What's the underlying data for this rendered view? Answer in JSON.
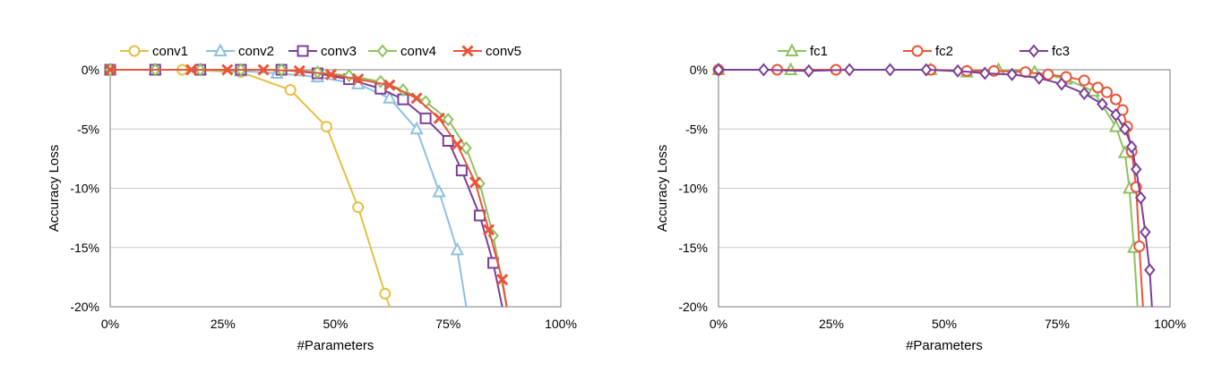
{
  "chart_data": [
    {
      "type": "line",
      "xlabel": "#Parameters",
      "ylabel": "Accuracy Loss",
      "xlim": [
        0,
        100
      ],
      "ylim": [
        -20,
        0
      ],
      "x_ticks": [
        "0%",
        "25%",
        "50%",
        "75%",
        "100%"
      ],
      "y_ticks": [
        "0%",
        "-5%",
        "-10%",
        "-15%",
        "-20%"
      ],
      "grid": "horizontal",
      "legend": "top",
      "series": [
        {
          "name": "conv1",
          "color": "#e5c043",
          "marker": "circle",
          "x": [
            0,
            16,
            29,
            40,
            48,
            55,
            61,
            62
          ],
          "y": [
            0,
            0,
            -0.2,
            -1.7,
            -4.8,
            -11.6,
            -18.9,
            -20
          ]
        },
        {
          "name": "conv2",
          "color": "#8dc1e0",
          "marker": "triangle",
          "x": [
            0,
            10,
            20,
            29,
            37,
            46,
            55,
            62,
            68,
            73,
            77,
            79
          ],
          "y": [
            0,
            0,
            0,
            -0.1,
            -0.3,
            -0.6,
            -1.2,
            -2.4,
            -5.0,
            -10.3,
            -15.2,
            -20
          ]
        },
        {
          "name": "conv3",
          "color": "#7b3f98",
          "marker": "square",
          "x": [
            0,
            10,
            20,
            29,
            38,
            46,
            53,
            60,
            65,
            70,
            75,
            78,
            82,
            85,
            87
          ],
          "y": [
            0,
            0,
            0,
            0,
            0,
            -0.3,
            -0.8,
            -1.6,
            -2.5,
            -4.1,
            -6.0,
            -8.5,
            -12.3,
            -16.3,
            -20
          ]
        },
        {
          "name": "conv4",
          "color": "#8fc25e",
          "marker": "diamond",
          "x": [
            0,
            10,
            20,
            29,
            38,
            46,
            53,
            60,
            65,
            70,
            75,
            79,
            82,
            85,
            88
          ],
          "y": [
            0,
            0,
            0,
            0,
            0,
            -0.2,
            -0.5,
            -1.0,
            -1.7,
            -2.7,
            -4.2,
            -6.6,
            -9.6,
            -14.0,
            -20
          ]
        },
        {
          "name": "conv5",
          "color": "#e8553b",
          "marker": "x",
          "x": [
            0,
            18,
            26,
            34,
            42,
            49,
            55,
            62,
            68,
            73,
            77,
            81,
            84,
            87,
            88
          ],
          "y": [
            0,
            0,
            0,
            0,
            -0.1,
            -0.4,
            -0.8,
            -1.3,
            -2.4,
            -4.1,
            -6.3,
            -9.5,
            -13.5,
            -17.7,
            -20
          ]
        }
      ]
    },
    {
      "type": "line",
      "xlabel": "#Parameters",
      "ylabel": "Accuracy Loss",
      "xlim": [
        0,
        100
      ],
      "ylim": [
        -20,
        0
      ],
      "x_ticks": [
        "0%",
        "25%",
        "50%",
        "75%",
        "100%"
      ],
      "y_ticks": [
        "0%",
        "-5%",
        "-10%",
        "-15%",
        "-20%"
      ],
      "grid": "horizontal",
      "legend": "top",
      "series": [
        {
          "name": "fc1",
          "color": "#8fc25e",
          "marker": "triangle",
          "x": [
            0,
            16,
            47,
            55,
            62,
            70,
            77,
            83,
            88,
            90,
            91,
            92,
            92.8
          ],
          "y": [
            0,
            0,
            0,
            -0.2,
            0,
            -0.2,
            -0.8,
            -1.8,
            -4.8,
            -7.0,
            -10.0,
            -15.0,
            -20
          ]
        },
        {
          "name": "fc2",
          "color": "#e8553b",
          "marker": "circle",
          "x": [
            0,
            13,
            26,
            47,
            55,
            61,
            68,
            73,
            77,
            81,
            84,
            86,
            88,
            89.5,
            90.5,
            91.5,
            92.5,
            93.2,
            94
          ],
          "y": [
            0,
            0,
            0,
            0,
            -0.1,
            -0.1,
            -0.2,
            -0.4,
            -0.6,
            -0.9,
            -1.5,
            -1.9,
            -2.5,
            -3.4,
            -4.8,
            -6.9,
            -9.9,
            -14.9,
            -20
          ]
        },
        {
          "name": "fc3",
          "color": "#7b3f98",
          "marker": "diamond",
          "x": [
            0,
            10,
            20,
            29,
            38,
            46,
            53,
            59,
            65,
            71,
            76,
            81,
            85,
            88,
            90,
            91.5,
            92.5,
            93.5,
            94.5,
            95.5,
            96
          ],
          "y": [
            0,
            0,
            -0.1,
            0,
            0,
            0,
            -0.1,
            -0.3,
            -0.4,
            -0.7,
            -1.2,
            -2.0,
            -2.9,
            -3.8,
            -5.0,
            -6.5,
            -8.4,
            -10.8,
            -13.7,
            -16.9,
            -20
          ]
        }
      ]
    }
  ]
}
